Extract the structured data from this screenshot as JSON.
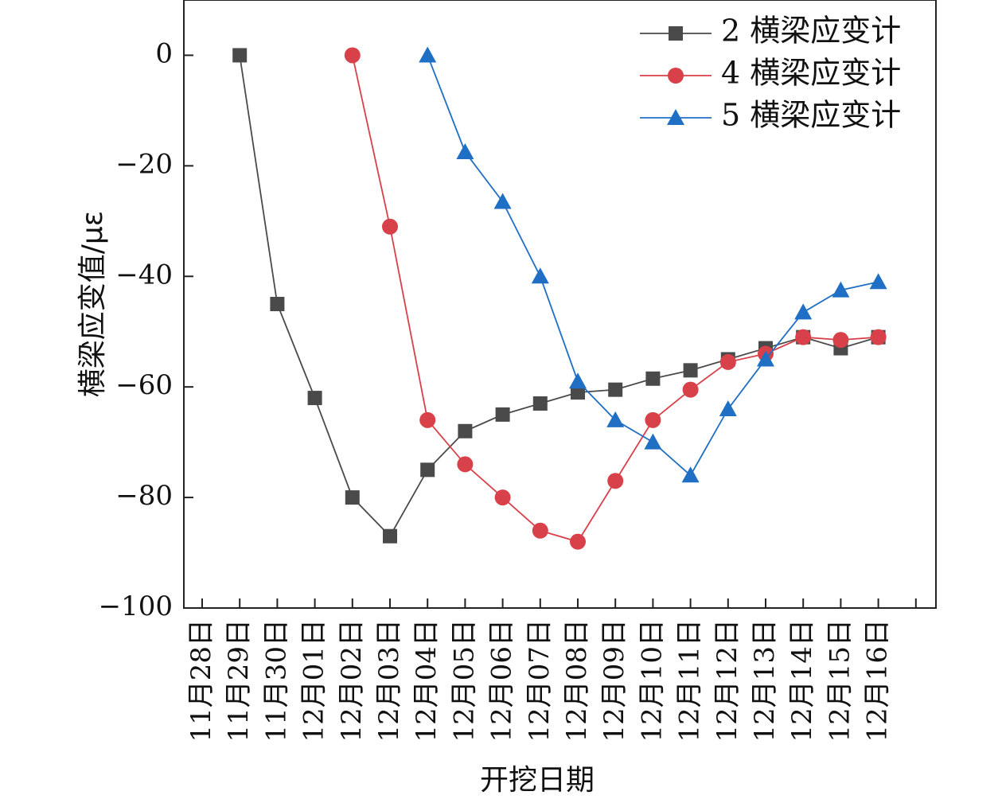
{
  "chart_data": {
    "type": "line",
    "xlabel": "开挖日期",
    "ylabel": "横梁应变值/με",
    "ylim": [
      -100,
      10
    ],
    "yticks": [
      0,
      -20,
      -40,
      -60,
      -80,
      -100
    ],
    "ytick_labels": [
      "0",
      "−20",
      "−40",
      "−60",
      "−80",
      "−100"
    ],
    "categories": [
      "11月28日",
      "11月29日",
      "11月30日",
      "12月01日",
      "12月02日",
      "12月03日",
      "12月04日",
      "12月05日",
      "12月06日",
      "12月07日",
      "12月08日",
      "12月09日",
      "12月10日",
      "12月11日",
      "12月12日",
      "12月13日",
      "12月14日",
      "12月15日",
      "12月16日"
    ],
    "grid": false,
    "legend_position": "top-right",
    "series": [
      {
        "name": "2 横梁应变计",
        "color": "#4a4a4a",
        "marker": "square",
        "values": [
          null,
          0,
          -45,
          -62,
          -80,
          -87,
          -75,
          -68,
          -65,
          -63,
          -61,
          -60.5,
          -58.5,
          -57,
          -55,
          -53,
          -51,
          -53,
          -51
        ]
      },
      {
        "name": "4 横梁应变计",
        "color": "#d9414a",
        "marker": "circle",
        "values": [
          null,
          null,
          null,
          null,
          0,
          -31,
          -66,
          -74,
          -80,
          -86,
          -88,
          -77,
          -66,
          -60.5,
          -55.5,
          -54,
          -51,
          -51.5,
          -51
        ]
      },
      {
        "name": "5 横梁应变计",
        "color": "#1f6fc4",
        "marker": "triangle",
        "values": [
          null,
          null,
          null,
          null,
          null,
          null,
          0,
          -17.5,
          -26.5,
          -40,
          -59,
          -66,
          -70,
          -76,
          -64,
          -55,
          -46.5,
          -42.5,
          -41
        ]
      }
    ]
  }
}
